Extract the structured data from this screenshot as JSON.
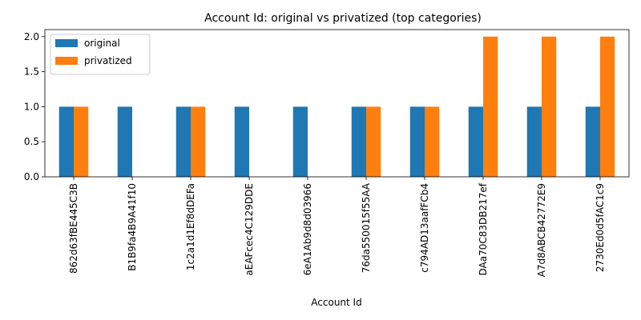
{
  "chart_data": {
    "type": "bar",
    "title": "Account Id: original vs privatized (top categories)",
    "xlabel": "Account Id",
    "ylabel": "",
    "ylim": [
      0,
      2.1
    ],
    "yticks": [
      "0.0",
      "0.5",
      "1.0",
      "1.5",
      "2.0"
    ],
    "categories": [
      "862d63fBE445C3B",
      "B1B9fa4B9A41f10",
      "1c2a1d1Ef8dDEFa",
      "aEAFcec4C129DDE",
      "6eA1Ab9d8d03966",
      "76da550015f55AA",
      "c794AD13aafFCb4",
      "DAa70C83DB217ef",
      "A7d8ABCB42772E9",
      "2730Ed0d5fAC1c9"
    ],
    "series": [
      {
        "name": "original",
        "color": "#1f77b4",
        "values": [
          1,
          1,
          1,
          1,
          1,
          1,
          1,
          1,
          1,
          1
        ]
      },
      {
        "name": "privatized",
        "color": "#ff7f0e",
        "values": [
          1,
          0,
          1,
          0,
          0,
          1,
          1,
          2,
          2,
          2
        ]
      }
    ],
    "legend": "top-left",
    "grid": false
  }
}
